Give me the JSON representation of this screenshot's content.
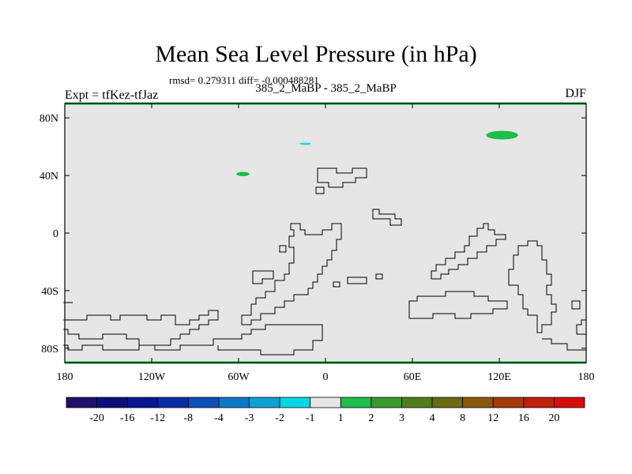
{
  "header": {
    "title": "Mean Sea Level Pressure (in hPa)",
    "stats": "rmsd= 0.279311 diff= -0.000488281",
    "center_subtitle": "385_2_MaBP - 385_2_MaBP",
    "left_subtitle": "Expt = tfKez-tfJaz",
    "right_subtitle": "DJF"
  },
  "colors": {
    "background_field": "#e6e6e6",
    "near_zero": "#e6e6e6",
    "positive_small": "#1fbd4a",
    "negative_small": "#00dde0",
    "coastline": "#000000"
  },
  "chart_data": {
    "type": "heatmap",
    "title": "Mean Sea Level Pressure (in hPa)",
    "projection": "cylindrical-equidistant",
    "xlim": [
      -180,
      180
    ],
    "ylim": [
      -90,
      90
    ],
    "x_ticks": [
      -180,
      -120,
      -60,
      0,
      60,
      120,
      180
    ],
    "x_tick_labels": [
      "180",
      "120W",
      "60W",
      "0",
      "60E",
      "120E",
      "180"
    ],
    "y_ticks": [
      80,
      40,
      0,
      -40,
      -80
    ],
    "y_tick_labels": [
      "80N",
      "40N",
      "0",
      "40S",
      "80S"
    ],
    "field_description_value": "mostly within -1 to 1 hPa",
    "anomaly_patches": [
      {
        "lon": 122,
        "lat": 68,
        "value_bin": "1 to 2",
        "color": "#1fbd4a",
        "width_deg": 22,
        "height_deg": 6
      },
      {
        "lon": -57,
        "lat": 41,
        "value_bin": "1 to 2",
        "color": "#1fbd4a",
        "width_deg": 9,
        "height_deg": 3
      },
      {
        "lon": -14,
        "lat": 62,
        "value_bin": "-2 to -1",
        "color": "#00dde0",
        "width_deg": 8,
        "height_deg": 1.5
      }
    ],
    "colorbar": {
      "labels": [
        "-20",
        "-16",
        "-12",
        "-8",
        "-4",
        "-3",
        "-2",
        "-1",
        "1",
        "2",
        "3",
        "4",
        "8",
        "12",
        "16",
        "20"
      ],
      "colors": [
        "#1f0f6a",
        "#0b0f7e",
        "#0a1794",
        "#0a2ea6",
        "#0950b8",
        "#0a78c8",
        "#0aa2d5",
        "#00d9e3",
        "#e6e6e6",
        "#1fbd4a",
        "#3b9a2c",
        "#4f7e1c",
        "#6a6a10",
        "#8a5a0a",
        "#a63a0a",
        "#c0200a",
        "#d80a0a"
      ]
    }
  }
}
